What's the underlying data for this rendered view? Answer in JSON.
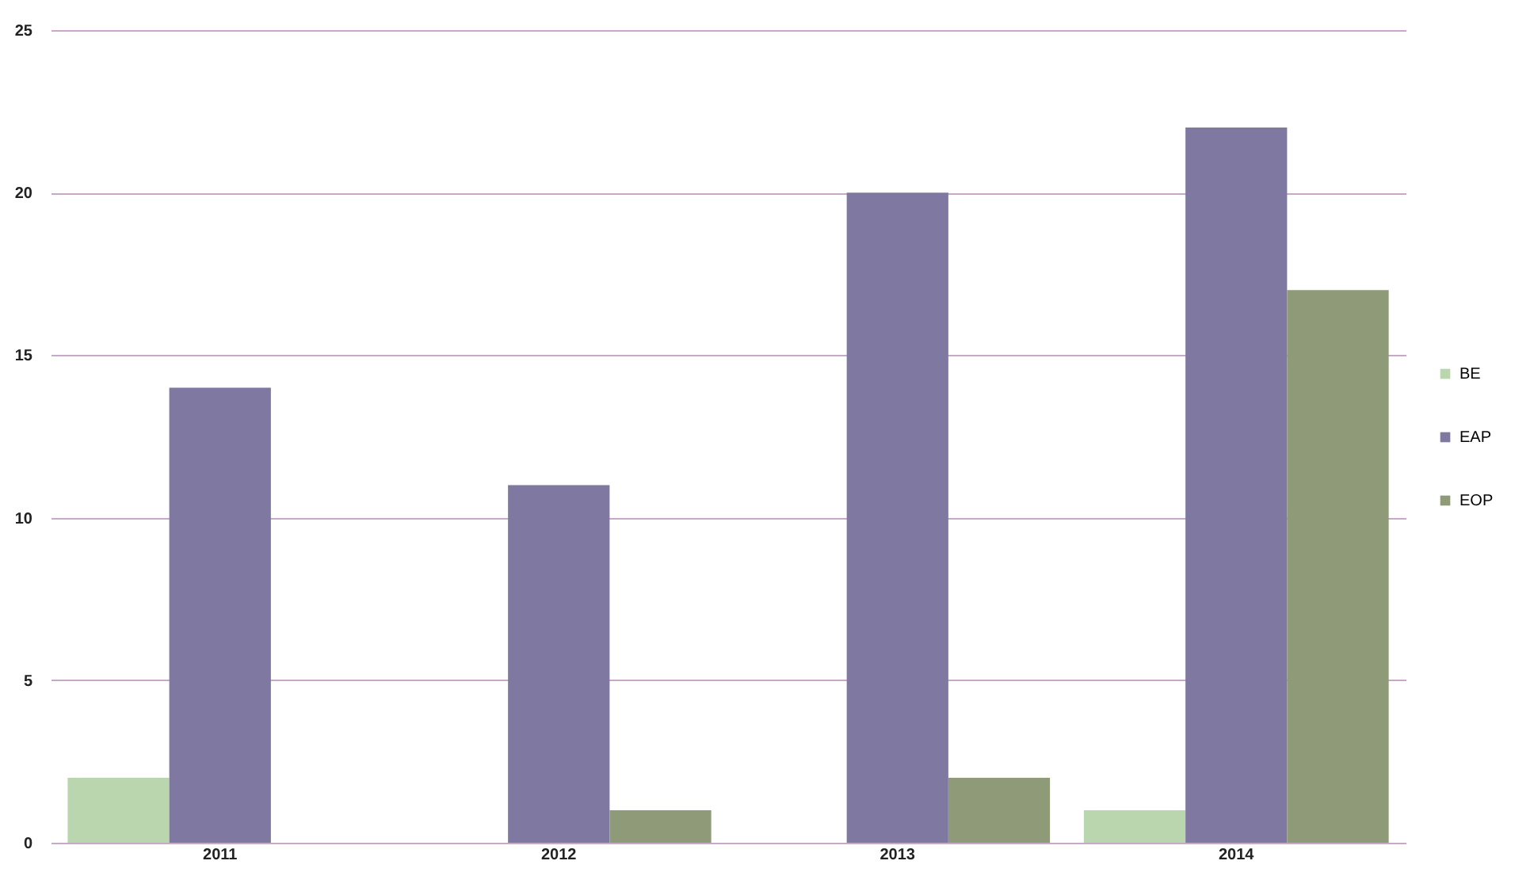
{
  "chart_data": {
    "type": "bar",
    "categories": [
      "2011",
      "2012",
      "2013",
      "2014"
    ],
    "series": [
      {
        "name": "BE",
        "color": "#b9d6ae",
        "values": [
          2,
          null,
          null,
          1
        ]
      },
      {
        "name": "EAP",
        "color": "#7f78a0",
        "values": [
          14,
          11,
          20,
          22
        ]
      },
      {
        "name": "EOP",
        "color": "#8f9a78",
        "values": [
          null,
          1,
          2,
          17
        ]
      }
    ],
    "ylim": [
      0,
      25
    ],
    "yticks": [
      0,
      5,
      10,
      15,
      20,
      25
    ],
    "grid": "y",
    "legend": "right"
  }
}
